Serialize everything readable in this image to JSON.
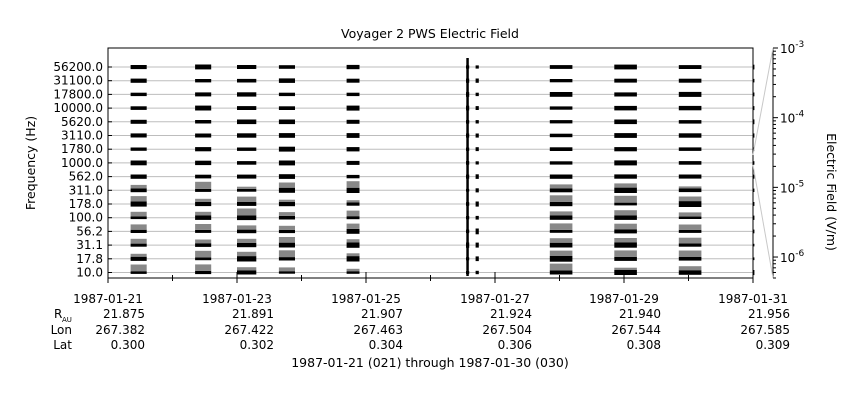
{
  "chart_data": {
    "type": "heatmap",
    "title": "Voyager 2 PWS Electric Field",
    "ylabel": "Frequency (Hz)",
    "colorbar_label": "Electric Field (V/m)",
    "colorbar_scale": "log",
    "colorbar_range": [
      5e-07,
      0.001
    ],
    "colorbar_ticks": [
      {
        "base": "10",
        "exp": "-3",
        "value": 0.001
      },
      {
        "base": "10",
        "exp": "-4",
        "value": 0.0001
      },
      {
        "base": "10",
        "exp": "-5",
        "value": 1e-05
      },
      {
        "base": "10",
        "exp": "-6",
        "value": 1e-06
      }
    ],
    "frequency_channels": [
      "56200.0",
      "31100.0",
      "17800.0",
      "10000.0",
      "5620.0",
      "3110.0",
      "1780.0",
      "1000.0",
      "562.0",
      "311.0",
      "178.0",
      "100.0",
      "56.2",
      "31.1",
      "17.8",
      "10.0"
    ],
    "xlim": [
      "1987-01-21",
      "1987-01-31"
    ],
    "x_ticks": [
      "1987-01-21",
      "1987-01-23",
      "1987-01-25",
      "1987-01-27",
      "1987-01-29",
      "1987-01-31"
    ],
    "ephemeris": {
      "r_label_main": "R",
      "r_label_sub": "AU",
      "rows": [
        {
          "label": "Lon",
          "values": [
            "267.382",
            "267.422",
            "267.463",
            "267.504",
            "267.544",
            "267.585"
          ]
        },
        {
          "label": "Lat",
          "values": [
            "0.300",
            "0.302",
            "0.304",
            "0.306",
            "0.308",
            "0.309"
          ]
        }
      ],
      "r_values": [
        "21.875",
        "21.891",
        "21.907",
        "21.924",
        "21.940",
        "21.956"
      ]
    },
    "observation_blocks_day": [
      [
        0.35,
        0.6
      ],
      [
        1.35,
        1.6
      ],
      [
        2.0,
        2.3
      ],
      [
        2.65,
        2.9
      ],
      [
        3.7,
        3.9
      ],
      [
        5.55,
        5.6
      ],
      [
        5.7,
        5.75
      ],
      [
        6.85,
        7.2
      ],
      [
        7.85,
        8.2
      ],
      [
        8.85,
        9.2
      ],
      [
        10.0,
        10.0
      ]
    ],
    "x_caption": "1987-01-21 (021) through 1987-01-30 (030)"
  }
}
